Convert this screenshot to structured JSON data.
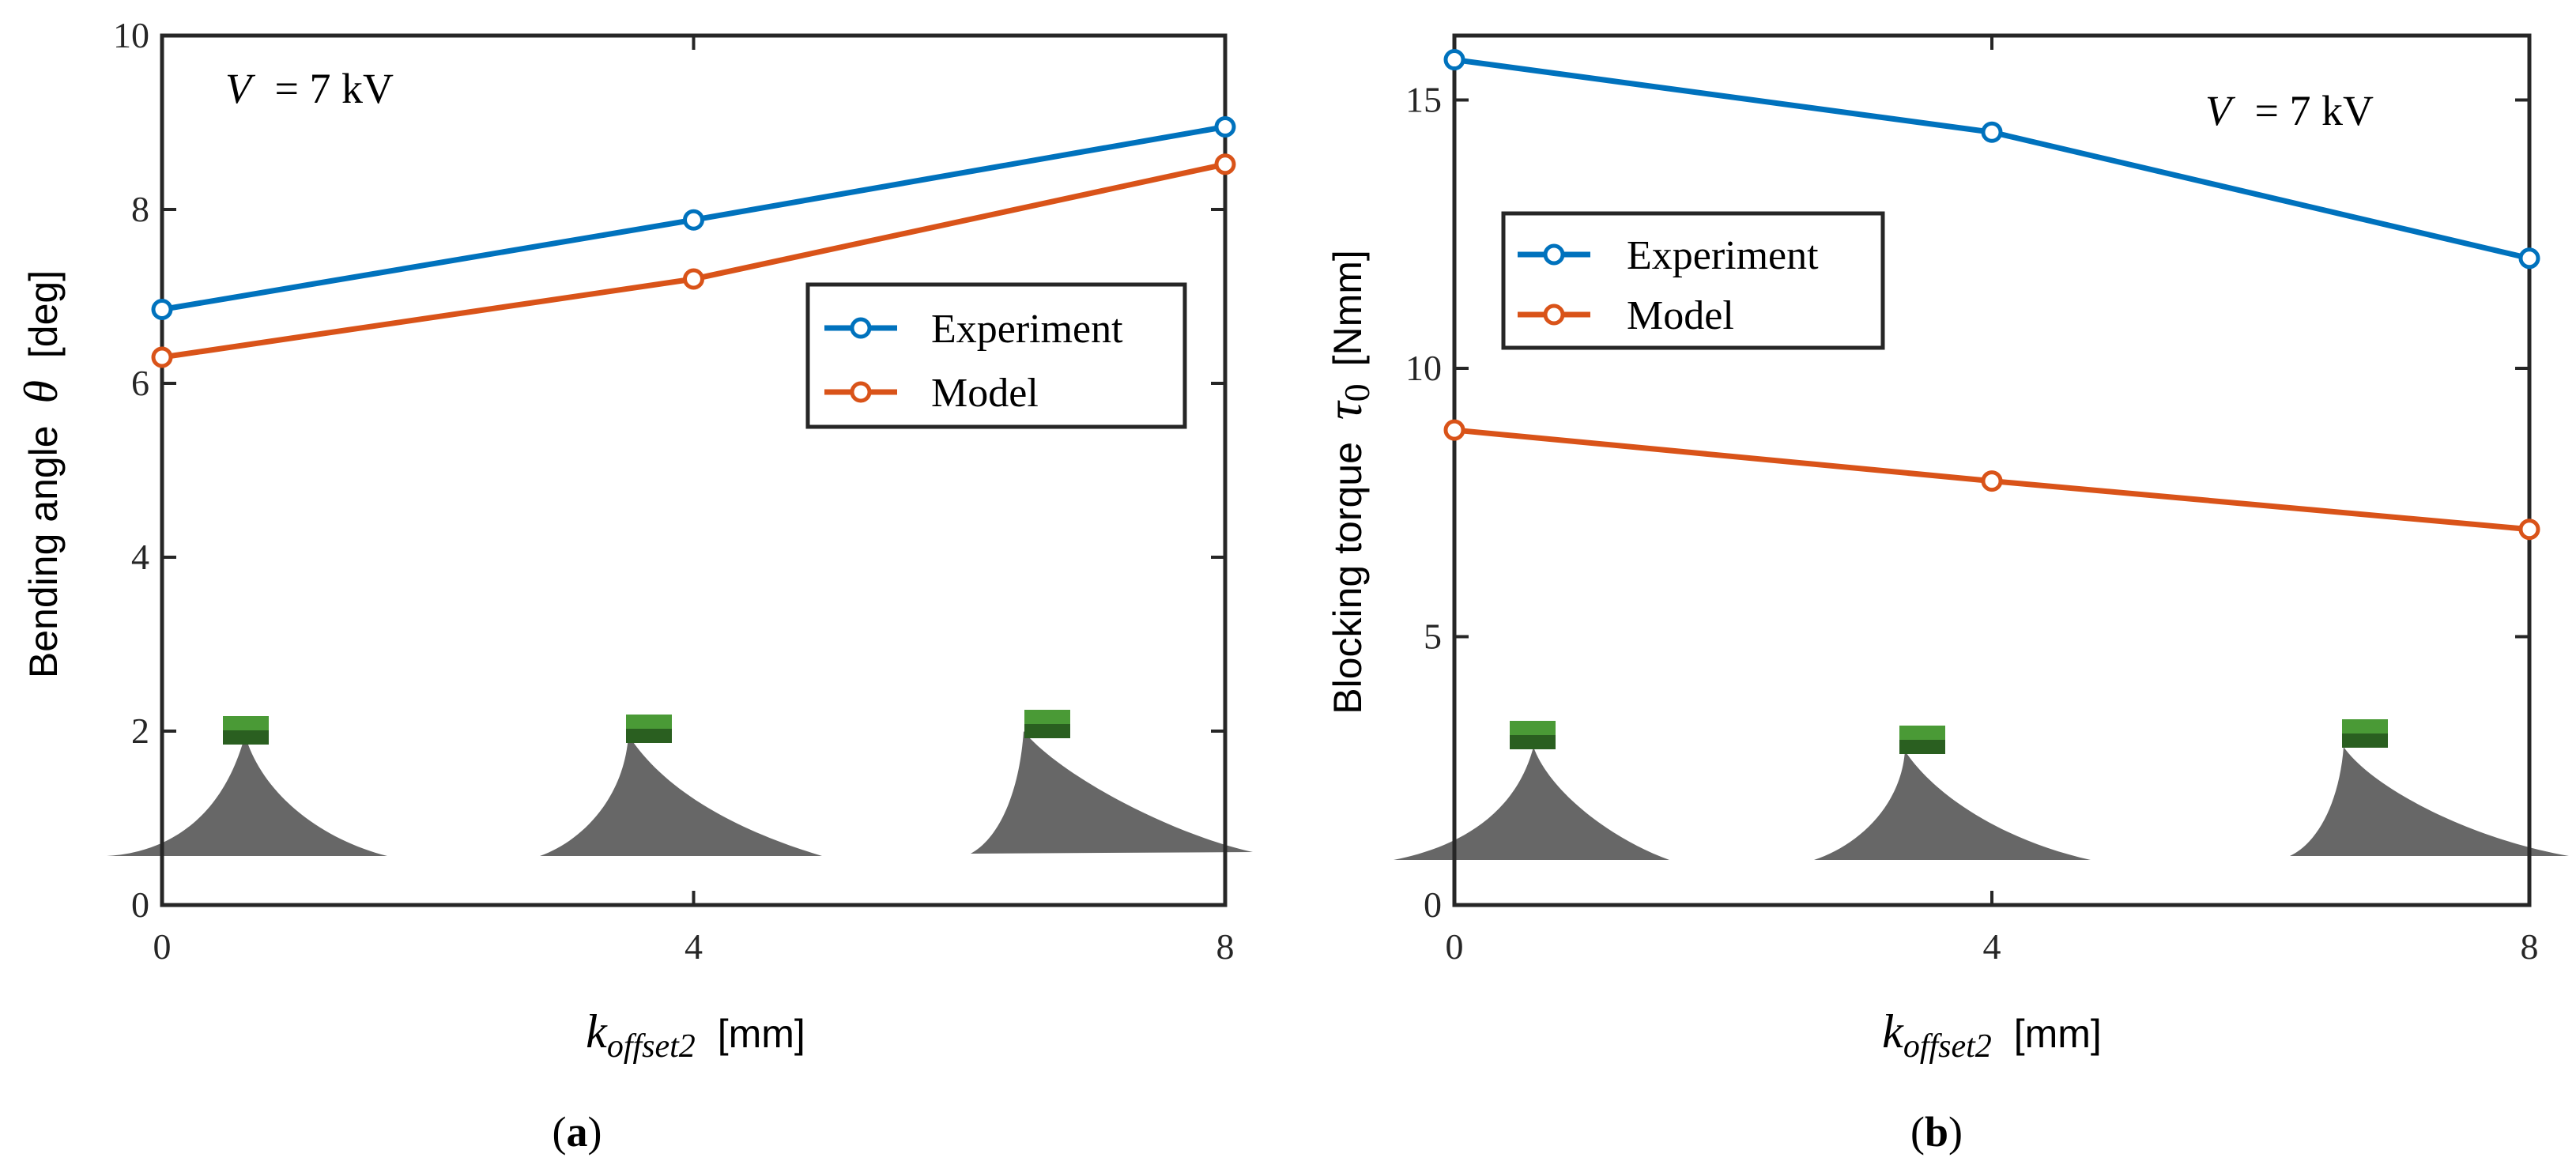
{
  "chart_data": [
    {
      "type": "line",
      "panel_label_open": "(",
      "panel_label_letter": "a",
      "panel_label_close": ")",
      "x": [
        0,
        4,
        8
      ],
      "xticks": [
        "0",
        "4",
        "8"
      ],
      "yticks": [
        "0",
        "2",
        "4",
        "6",
        "8",
        "10"
      ],
      "xlim": [
        0,
        8
      ],
      "ylim": [
        0,
        10
      ],
      "xlabel_main": "k",
      "xlabel_sub": "offset2",
      "xlabel_unit": "[mm]",
      "ylabel_text": "Bending angle",
      "ylabel_symbol": "θ",
      "ylabel_unit": "[deg]",
      "annotation_var": "V",
      "annotation_value": "= 7 kV",
      "legend_position": "middle-right",
      "series": [
        {
          "name": "Experiment",
          "color": "#0072BD",
          "values": [
            6.85,
            7.88,
            8.95
          ]
        },
        {
          "name": "Model",
          "color": "#D95319",
          "values": [
            6.3,
            7.2,
            8.52
          ]
        }
      ]
    },
    {
      "type": "line",
      "panel_label_open": "(",
      "panel_label_letter": "b",
      "panel_label_close": ")",
      "x": [
        0,
        4,
        8
      ],
      "xticks": [
        "0",
        "4",
        "8"
      ],
      "yticks": [
        "0",
        "5",
        "10",
        "15"
      ],
      "xlim": [
        0,
        8
      ],
      "ylim": [
        0,
        16.2
      ],
      "xlabel_main": "k",
      "xlabel_sub": "offset2",
      "xlabel_unit": "[mm]",
      "ylabel_text": "Blocking torque",
      "ylabel_symbol": "τ",
      "ylabel_symbol_sub": "0",
      "ylabel_unit": "[Nmm]",
      "annotation_var": "V",
      "annotation_value": "= 7 kV",
      "legend_position": "upper-left",
      "series": [
        {
          "name": "Experiment",
          "color": "#0072BD",
          "values": [
            15.75,
            14.4,
            12.05
          ]
        },
        {
          "name": "Model",
          "color": "#D95319",
          "values": [
            8.85,
            7.9,
            7.0
          ]
        }
      ]
    }
  ]
}
